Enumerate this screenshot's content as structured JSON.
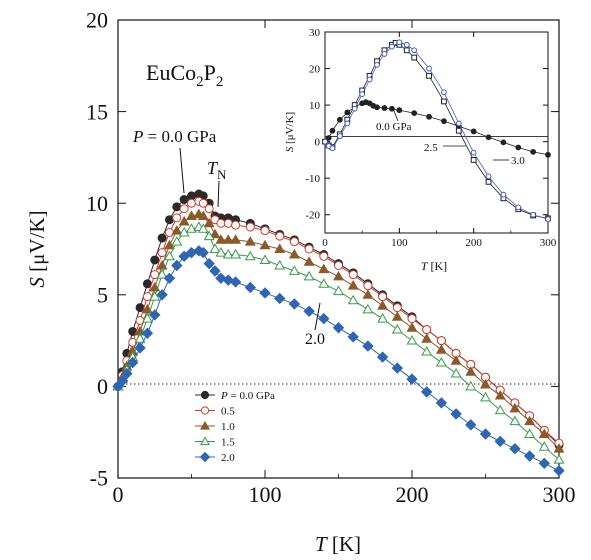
{
  "chart_data": [
    {
      "type": "scatter",
      "title": "",
      "compound": {
        "main": "EuCo",
        "sub1": "2",
        "mid": "P",
        "sub2": "2"
      },
      "xlabel": {
        "symbol": "T",
        "unit": " [K]"
      },
      "ylabel": {
        "symbol": "S",
        "unit": " [μV/K]"
      },
      "xlim": [
        0,
        300
      ],
      "ylim": [
        -5,
        20
      ],
      "xticks": [
        "0",
        "100",
        "200",
        "300"
      ],
      "yticks": [
        "-5",
        "0",
        "5",
        "10",
        "15",
        "20"
      ],
      "zero_line": "dotted",
      "annotations": {
        "pressure_prefix": "P",
        "pressure_value": " = 0.0 GPa",
        "tn_main": "T",
        "tn_sub": "N",
        "label_2": "2.0"
      },
      "legend_placement": "bottom-left",
      "series": [
        {
          "legend_prefix": "P",
          "name": " = 0.0 GPa",
          "marker": "circle-filled",
          "color": "#2a2a2a",
          "x": [
            0,
            3,
            6,
            10,
            15,
            20,
            25,
            30,
            35,
            40,
            45,
            50,
            55,
            58,
            62,
            66,
            70,
            75,
            80,
            90,
            100,
            110,
            120,
            130,
            140,
            150,
            160,
            170,
            180,
            190,
            200,
            210,
            220,
            230,
            240,
            250,
            260,
            270,
            280,
            290,
            300
          ],
          "y": [
            0,
            0.8,
            1.8,
            3.0,
            4.3,
            5.6,
            6.9,
            8.1,
            9.1,
            9.8,
            10.2,
            10.4,
            10.5,
            10.4,
            10.0,
            9.3,
            9.2,
            9.2,
            9.1,
            8.9,
            8.6,
            8.3,
            8.0,
            7.6,
            7.2,
            6.7,
            6.2,
            5.6,
            5.0,
            4.4,
            3.8,
            3.1,
            2.5,
            1.8,
            1.2,
            0.5,
            -0.2,
            -0.9,
            -1.6,
            -2.4,
            -3.2
          ]
        },
        {
          "name": "0.5",
          "marker": "circle-open",
          "color": "#d13a2a",
          "x": [
            0,
            3,
            6,
            10,
            15,
            20,
            25,
            30,
            35,
            40,
            45,
            50,
            55,
            58,
            62,
            66,
            70,
            75,
            80,
            90,
            100,
            110,
            120,
            130,
            140,
            150,
            160,
            170,
            180,
            190,
            200,
            210,
            220,
            230,
            240,
            250,
            260,
            270,
            280,
            290,
            300
          ],
          "y": [
            0,
            0.6,
            1.4,
            2.4,
            3.6,
            4.9,
            6.1,
            7.3,
            8.4,
            9.2,
            9.7,
            10.0,
            10.1,
            10.0,
            9.7,
            9.1,
            8.9,
            8.9,
            8.8,
            8.7,
            8.5,
            8.2,
            7.9,
            7.5,
            7.1,
            6.6,
            6.1,
            5.5,
            4.9,
            4.3,
            3.7,
            3.1,
            2.5,
            1.8,
            1.2,
            0.5,
            -0.2,
            -0.9,
            -1.6,
            -2.4,
            -3.1
          ]
        },
        {
          "name": "1.0",
          "marker": "triangle-filled",
          "color": "#8a5a2b",
          "x": [
            0,
            3,
            6,
            10,
            15,
            20,
            25,
            30,
            35,
            40,
            45,
            50,
            55,
            58,
            62,
            66,
            70,
            75,
            80,
            90,
            100,
            110,
            120,
            130,
            140,
            150,
            160,
            170,
            180,
            190,
            200,
            210,
            220,
            230,
            240,
            250,
            260,
            270,
            280,
            290,
            300
          ],
          "y": [
            0,
            0.5,
            1.1,
            1.9,
            3.0,
            4.2,
            5.4,
            6.6,
            7.7,
            8.5,
            9.0,
            9.3,
            9.4,
            9.3,
            8.9,
            8.3,
            8.0,
            8.0,
            8.0,
            7.9,
            7.7,
            7.5,
            7.2,
            6.8,
            6.4,
            6.0,
            5.5,
            5.0,
            4.4,
            3.8,
            3.2,
            2.6,
            2.0,
            1.4,
            0.8,
            0.1,
            -0.5,
            -1.2,
            -1.9,
            -2.6,
            -3.4
          ]
        },
        {
          "name": "1.5",
          "marker": "triangle-open",
          "color": "#3a9a4a",
          "x": [
            0,
            3,
            6,
            10,
            15,
            20,
            25,
            30,
            35,
            40,
            45,
            50,
            55,
            58,
            62,
            66,
            70,
            75,
            80,
            90,
            100,
            110,
            120,
            130,
            140,
            150,
            160,
            170,
            180,
            190,
            200,
            210,
            220,
            230,
            240,
            250,
            260,
            270,
            280,
            290,
            300
          ],
          "y": [
            0,
            0.4,
            0.9,
            1.6,
            2.6,
            3.7,
            4.9,
            6.1,
            7.1,
            7.9,
            8.4,
            8.6,
            8.7,
            8.6,
            8.2,
            7.5,
            7.3,
            7.2,
            7.2,
            7.1,
            6.9,
            6.6,
            6.3,
            6.0,
            5.6,
            5.2,
            4.7,
            4.2,
            3.7,
            3.1,
            2.5,
            1.9,
            1.3,
            0.7,
            0.0,
            -0.6,
            -1.3,
            -1.9,
            -2.6,
            -3.3,
            -4.0
          ]
        },
        {
          "name": "2.0",
          "marker": "diamond-filled",
          "color": "#2f66b4",
          "x": [
            0,
            3,
            6,
            10,
            15,
            20,
            25,
            30,
            35,
            40,
            45,
            50,
            55,
            58,
            62,
            66,
            70,
            75,
            80,
            90,
            100,
            110,
            120,
            130,
            140,
            150,
            160,
            170,
            180,
            190,
            200,
            210,
            220,
            230,
            240,
            250,
            260,
            270,
            280,
            290,
            300
          ],
          "y": [
            0,
            0.3,
            0.7,
            1.3,
            2.1,
            2.9,
            3.9,
            5.0,
            5.9,
            6.6,
            7.1,
            7.3,
            7.4,
            7.3,
            6.7,
            6.3,
            5.9,
            5.8,
            5.7,
            5.4,
            5.1,
            4.8,
            4.5,
            4.1,
            3.7,
            3.2,
            2.7,
            2.2,
            1.6,
            1.0,
            0.4,
            -0.3,
            -0.9,
            -1.5,
            -2.1,
            -2.6,
            -3.0,
            -3.4,
            -3.8,
            -4.2,
            -4.6
          ]
        }
      ]
    },
    {
      "type": "scatter",
      "title": "",
      "xlabel": {
        "symbol": "T",
        "unit": " [K]"
      },
      "ylabel": {
        "symbol": "S",
        "unit": " [μV/K]"
      },
      "xlim": [
        0,
        300
      ],
      "ylim": [
        -25,
        30
      ],
      "xticks": [
        "0",
        "100",
        "200",
        "300"
      ],
      "yticks": [
        "-20",
        "-10",
        "0",
        "10",
        "20",
        "30"
      ],
      "zero_line": "solid",
      "annotations": {
        "label_00": "0.0 GPa",
        "label_25": "2.5",
        "label_30": "3.0"
      },
      "series": [
        {
          "name": "0.0 GPa",
          "marker": "dot",
          "color": "#222222",
          "x": [
            0,
            5,
            10,
            20,
            30,
            40,
            50,
            55,
            60,
            65,
            70,
            80,
            90,
            100,
            120,
            140,
            160,
            180,
            200,
            220,
            240,
            260,
            280,
            300
          ],
          "y": [
            0,
            1,
            3,
            6,
            8,
            9.5,
            10.5,
            10.8,
            10.5,
            9.8,
            9.4,
            9.2,
            9.0,
            8.6,
            7.8,
            6.8,
            5.6,
            4.2,
            2.8,
            1.2,
            -0.2,
            -1.6,
            -2.8,
            -3.6
          ]
        },
        {
          "name": "2.5",
          "marker": "square-open",
          "color": "#222222",
          "x": [
            0,
            5,
            10,
            20,
            30,
            40,
            50,
            60,
            70,
            80,
            90,
            95,
            100,
            110,
            120,
            140,
            160,
            180,
            200,
            220,
            240,
            260,
            280,
            300
          ],
          "y": [
            0,
            -1,
            -1.5,
            2,
            6,
            10,
            14,
            18,
            22,
            25,
            26.5,
            27,
            26.5,
            25,
            23,
            18,
            11,
            3,
            -5,
            -11,
            -15.5,
            -18.5,
            -20.2,
            -21
          ]
        },
        {
          "name": "3.0",
          "marker": "circle-open",
          "color": "#4060c0",
          "x": [
            0,
            5,
            10,
            20,
            30,
            40,
            50,
            60,
            70,
            80,
            90,
            100,
            110,
            120,
            140,
            160,
            180,
            200,
            220,
            240,
            260,
            280,
            300
          ],
          "y": [
            0,
            -1.2,
            -1.8,
            1.5,
            5,
            9,
            13,
            17,
            21,
            24,
            26,
            27.2,
            26.5,
            25,
            20,
            13.5,
            5,
            -3,
            -9.5,
            -14.5,
            -18,
            -20,
            -21.2
          ]
        }
      ]
    }
  ]
}
